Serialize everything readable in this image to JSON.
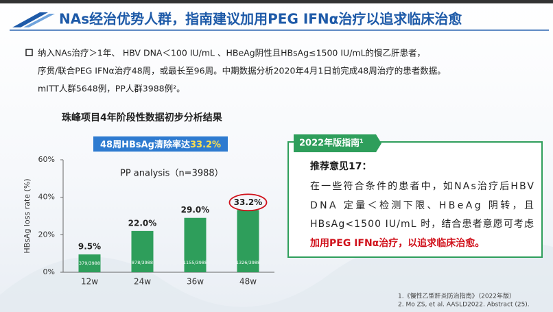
{
  "header": {
    "title": "NAs经治优势人群，指南建议加用PEG IFNα治疗以追求临床治愈"
  },
  "bullet": {
    "lines": [
      "纳入NAs治疗＞1年、 HBV DNA＜100 IU/mL 、HBeAg阴性且HBsAg≤1500 IU/mL的慢乙肝患者，",
      "序贯/联合PEG IFNα治疗48周，或最长至96周。中期数据分析2020年4月1日前完成48周治疗的患者数据。",
      "mITT人群5648例，PP人群3988例²。"
    ]
  },
  "chart_data": {
    "type": "bar",
    "title": "珠峰项目4年阶段性数据初步分析结果",
    "banner": {
      "text": "48周HBsAg清除率达",
      "highlight": "33.2%"
    },
    "subtitle": "PP analysis（n=3988）",
    "y_label": "HBsAg loss rate (%)",
    "categories": [
      "12w",
      "24w",
      "36w",
      "48w"
    ],
    "values": [
      9.5,
      22.0,
      29.0,
      33.2
    ],
    "value_labels": [
      "9.5%",
      "22.0%",
      "29.0%",
      "33.2%"
    ],
    "inner_labels": [
      "379/3988",
      "878/3988",
      "1155/3988",
      "1326/3988"
    ],
    "color": "#2e9e5b",
    "ylim": [
      0,
      60
    ],
    "yticks": [
      {
        "value": 0,
        "label": "0%"
      },
      {
        "value": 20,
        "label": "20%"
      },
      {
        "value": 40,
        "label": "40%"
      },
      {
        "value": 60,
        "label": "60%"
      }
    ]
  },
  "guideline": {
    "tab": "2022年版指南¹",
    "heading": "推荐意见17：",
    "lines": [
      "在一些符合条件的患者中，如NAs治疗后HBV",
      "DNA 定量＜检测下限、HBeAg 阴转，且",
      "HBsAg<1500 IU/mL 时，结合患者意愿可考虑"
    ],
    "emphasis": "加用PEG IFNα治疗，以追求临床治愈。"
  },
  "footnotes": [
    "1.《慢性乙型肝炎防治指南》（2022年版）",
    "2. Mo ZS, et al. AASLD2022. Abstract (25)."
  ]
}
